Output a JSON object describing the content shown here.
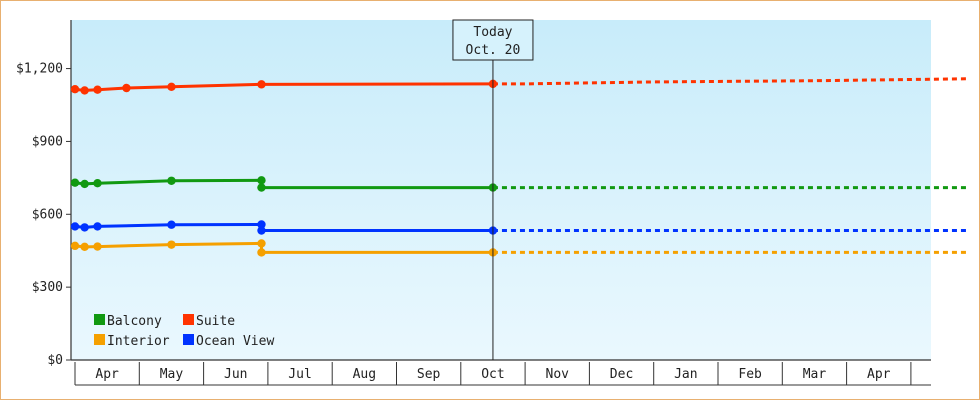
{
  "chart_data": {
    "type": "line",
    "title": "",
    "xlabel": "",
    "ylabel": "",
    "ylim": [
      0,
      1400
    ],
    "y_ticks": [
      0,
      300,
      600,
      900,
      1200
    ],
    "y_tick_labels": [
      "$0",
      "$300",
      "$600",
      "$900",
      "$1,200"
    ],
    "x_tick_labels": [
      "Apr",
      "May",
      "Jun",
      "Jul",
      "Aug",
      "Sep",
      "Oct",
      "Nov",
      "Dec",
      "Jan",
      "Feb",
      "Mar",
      "Apr"
    ],
    "today": {
      "line1": "Today",
      "line2": "Oct. 20"
    },
    "grid": false,
    "legend_position": "bottom-left",
    "colors": {
      "Balcony": "#119911",
      "Suite": "#ff3300",
      "Interior": "#f5a000",
      "Ocean View": "#0033ff",
      "axis": "#333333",
      "plot_bg_top": "#c8ecfa",
      "plot_bg_bottom": "#eaf8fe",
      "border": "#e8b070"
    },
    "series": [
      {
        "name": "Balcony",
        "history": [
          [
            0,
            730
          ],
          [
            0.15,
            725
          ],
          [
            0.35,
            728
          ],
          [
            1.5,
            738
          ],
          [
            2.9,
            740
          ],
          [
            2.9,
            710
          ],
          [
            6.5,
            710
          ]
        ],
        "forecast": [
          [
            6.5,
            710
          ],
          [
            13.9,
            710
          ]
        ]
      },
      {
        "name": "Suite",
        "history": [
          [
            0,
            1115
          ],
          [
            0.15,
            1110
          ],
          [
            0.35,
            1113
          ],
          [
            0.8,
            1120
          ],
          [
            1.5,
            1125
          ],
          [
            2.9,
            1135
          ],
          [
            6.5,
            1137
          ]
        ],
        "forecast": [
          [
            6.5,
            1137
          ],
          [
            7.0,
            1137
          ],
          [
            9.0,
            1145
          ],
          [
            11.5,
            1150
          ],
          [
            13.9,
            1158
          ]
        ]
      },
      {
        "name": "Interior",
        "history": [
          [
            0,
            470
          ],
          [
            0.15,
            466
          ],
          [
            0.35,
            467
          ],
          [
            1.5,
            475
          ],
          [
            2.9,
            480
          ],
          [
            2.9,
            443
          ],
          [
            6.5,
            443
          ]
        ],
        "forecast": [
          [
            6.5,
            443
          ],
          [
            13.9,
            443
          ]
        ]
      },
      {
        "name": "Ocean View",
        "history": [
          [
            0,
            550
          ],
          [
            0.15,
            546
          ],
          [
            0.35,
            550
          ],
          [
            1.5,
            557
          ],
          [
            2.9,
            558
          ],
          [
            2.9,
            533
          ],
          [
            6.5,
            533
          ]
        ],
        "forecast": [
          [
            6.5,
            533
          ],
          [
            13.9,
            533
          ]
        ]
      }
    ],
    "legend": [
      [
        "Balcony",
        "Suite"
      ],
      [
        "Interior",
        "Ocean View"
      ]
    ]
  }
}
